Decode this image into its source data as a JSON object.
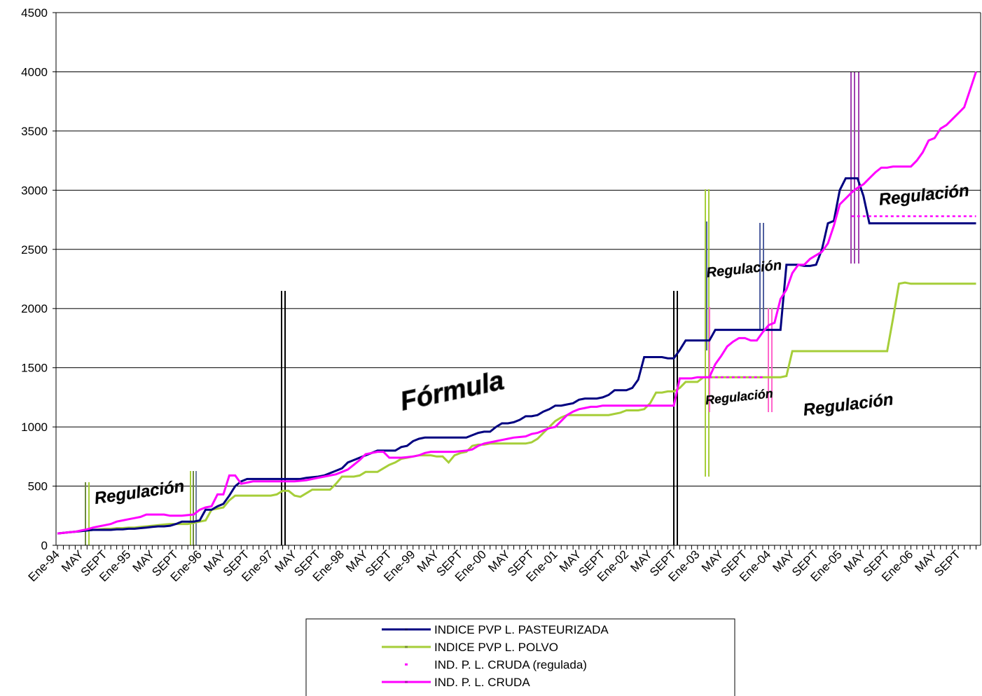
{
  "chart_data": {
    "type": "line",
    "categories": [
      "Ene-94",
      null,
      null,
      null,
      "MAY",
      null,
      null,
      null,
      "SEPT",
      null,
      null,
      null,
      "Ene-95",
      null,
      null,
      null,
      "MAY",
      null,
      null,
      null,
      "SEPT",
      null,
      null,
      null,
      "Ene-96",
      null,
      null,
      null,
      "MAY",
      null,
      null,
      null,
      "SEPT",
      null,
      null,
      null,
      "Ene-97",
      null,
      null,
      null,
      "MAY",
      null,
      null,
      null,
      "SEPT",
      null,
      null,
      null,
      "Ene-98",
      null,
      null,
      null,
      "MAY",
      null,
      null,
      null,
      "SEPT",
      null,
      null,
      null,
      "Ene-99",
      null,
      null,
      null,
      "MAY",
      null,
      null,
      null,
      "SEPT",
      null,
      null,
      null,
      "Ene-00",
      null,
      null,
      null,
      "MAY",
      null,
      null,
      null,
      "SEPT",
      null,
      null,
      null,
      "Ene-01",
      null,
      null,
      null,
      "MAY",
      null,
      null,
      null,
      "SEPT",
      null,
      null,
      null,
      "Ene-02",
      null,
      null,
      null,
      "MAY",
      null,
      null,
      null,
      "SEPT",
      null,
      null,
      null,
      "Ene-03",
      null,
      null,
      null,
      "MAY",
      null,
      null,
      null,
      "SEPT",
      null,
      null,
      null,
      "Ene-04",
      null,
      null,
      null,
      "MAY",
      null,
      null,
      null,
      "SEPT",
      null,
      null,
      null,
      "Ene-05",
      null,
      null,
      null,
      "MAY",
      null,
      null,
      null,
      "SEPT",
      null,
      null,
      null,
      "Ene-06",
      null,
      null,
      null,
      "MAY",
      null,
      null,
      null,
      "SEPT",
      null,
      null,
      null
    ],
    "series": [
      {
        "name": "INDICE PVP L. PASTEURIZADA",
        "color": "#000080",
        "style": "solid",
        "values": [
          100,
          105,
          110,
          115,
          120,
          125,
          130,
          130,
          130,
          130,
          135,
          135,
          140,
          140,
          145,
          150,
          155,
          160,
          160,
          165,
          180,
          200,
          200,
          200,
          210,
          300,
          300,
          330,
          350,
          420,
          500,
          540,
          560,
          560,
          560,
          560,
          560,
          560,
          560,
          560,
          560,
          560,
          570,
          575,
          580,
          590,
          610,
          630,
          650,
          700,
          720,
          740,
          760,
          780,
          800,
          800,
          800,
          800,
          830,
          840,
          880,
          900,
          910,
          910,
          910,
          910,
          910,
          910,
          910,
          910,
          930,
          950,
          960,
          960,
          1000,
          1030,
          1030,
          1040,
          1060,
          1090,
          1090,
          1100,
          1130,
          1150,
          1180,
          1180,
          1190,
          1200,
          1230,
          1240,
          1240,
          1240,
          1250,
          1270,
          1310,
          1310,
          1310,
          1330,
          1400,
          1590,
          1590,
          1590,
          1590,
          1580,
          1580,
          1650,
          1730,
          1730,
          1730,
          1730,
          1730,
          1820,
          1820,
          1820,
          1820,
          1820,
          1820,
          1820,
          1820,
          1820,
          1820,
          1820,
          1820,
          2370,
          2370,
          2370,
          2360,
          2360,
          2370,
          2500,
          2720,
          2740,
          3000,
          3100,
          3100,
          3100,
          2950,
          2720,
          2720,
          2720,
          2720,
          2720,
          2720,
          2720,
          2720,
          2720,
          2720,
          2720,
          2720,
          2720,
          2720,
          2720,
          2720,
          2720,
          2720,
          2720
        ]
      },
      {
        "name": "INDICE PVP L. POLVO",
        "color": "#a6ce39",
        "style": "solid",
        "values": [
          100,
          105,
          110,
          115,
          120,
          125,
          130,
          135,
          140,
          140,
          145,
          145,
          150,
          150,
          155,
          160,
          165,
          170,
          175,
          180,
          180,
          180,
          180,
          190,
          200,
          210,
          300,
          310,
          320,
          380,
          420,
          420,
          420,
          420,
          420,
          420,
          420,
          430,
          460,
          460,
          420,
          410,
          440,
          470,
          470,
          470,
          470,
          520,
          580,
          580,
          580,
          590,
          620,
          620,
          620,
          650,
          680,
          700,
          730,
          740,
          750,
          760,
          760,
          760,
          750,
          750,
          700,
          760,
          780,
          790,
          840,
          850,
          850,
          860,
          860,
          860,
          860,
          860,
          860,
          860,
          870,
          900,
          950,
          1000,
          1050,
          1080,
          1100,
          1100,
          1100,
          1100,
          1100,
          1100,
          1100,
          1100,
          1110,
          1120,
          1140,
          1140,
          1140,
          1150,
          1200,
          1290,
          1290,
          1300,
          1300,
          1330,
          1380,
          1380,
          1380,
          1420,
          1420,
          1420,
          1420,
          1420,
          1420,
          1420,
          1420,
          1420,
          1420,
          1420,
          1420,
          1420,
          1420,
          1430,
          1640,
          1640,
          1640,
          1640,
          1640,
          1640,
          1640,
          1640,
          1640,
          1640,
          1640,
          1640,
          1640,
          1640,
          1640,
          1640,
          1640,
          1920,
          2210,
          2220,
          2210,
          2210,
          2210,
          2210,
          2210,
          2210,
          2210,
          2210,
          2210,
          2210,
          2210,
          2210
        ]
      },
      {
        "name": "IND. P. L. CRUDA (regulada)",
        "color": "#ff00ff",
        "style": "dotted",
        "values": [
          null,
          null,
          null,
          null,
          null,
          null,
          null,
          null,
          null,
          null,
          null,
          null,
          null,
          null,
          null,
          null,
          null,
          null,
          null,
          null,
          null,
          null,
          null,
          null,
          null,
          null,
          null,
          null,
          null,
          null,
          null,
          null,
          null,
          null,
          null,
          null,
          null,
          null,
          null,
          null,
          null,
          null,
          null,
          null,
          null,
          null,
          null,
          null,
          null,
          null,
          null,
          null,
          null,
          null,
          null,
          null,
          null,
          null,
          null,
          null,
          null,
          null,
          null,
          null,
          null,
          null,
          null,
          null,
          null,
          null,
          null,
          null,
          null,
          null,
          null,
          null,
          null,
          null,
          null,
          null,
          null,
          null,
          null,
          null,
          null,
          null,
          null,
          null,
          null,
          null,
          null,
          null,
          null,
          null,
          null,
          null,
          null,
          null,
          null,
          null,
          null,
          null,
          null,
          null,
          null,
          null,
          null,
          null,
          null,
          null,
          1420,
          1420,
          1420,
          1420,
          1420,
          1420,
          1420,
          1420,
          1420,
          1420,
          null,
          null,
          null,
          null,
          null,
          null,
          null,
          null,
          null,
          null,
          null,
          null,
          null,
          null,
          2780,
          2780,
          2780,
          2780,
          2780,
          2780,
          2780,
          2780,
          2780,
          2780,
          2780,
          2780,
          2780,
          2780,
          2780,
          2780,
          2780,
          2780,
          2780,
          2780,
          2780,
          2780
        ]
      },
      {
        "name": "IND. P. L. CRUDA",
        "color": "#ff00ff",
        "style": "solid",
        "values": [
          100,
          105,
          110,
          115,
          125,
          135,
          150,
          160,
          170,
          180,
          200,
          210,
          220,
          230,
          240,
          260,
          260,
          260,
          260,
          250,
          250,
          250,
          255,
          260,
          300,
          320,
          330,
          430,
          430,
          590,
          590,
          520,
          530,
          540,
          540,
          540,
          540,
          540,
          540,
          540,
          540,
          545,
          550,
          560,
          570,
          580,
          590,
          600,
          620,
          640,
          680,
          720,
          770,
          780,
          790,
          790,
          740,
          740,
          740,
          745,
          750,
          760,
          780,
          790,
          790,
          790,
          790,
          790,
          795,
          800,
          810,
          840,
          860,
          870,
          880,
          890,
          900,
          910,
          915,
          920,
          940,
          950,
          970,
          990,
          1000,
          1050,
          1100,
          1130,
          1150,
          1160,
          1170,
          1170,
          1180,
          1180,
          1180,
          1180,
          1180,
          1180,
          1180,
          1180,
          1180,
          1180,
          1180,
          1180,
          1180,
          1410,
          1410,
          1410,
          1420,
          1420,
          1420,
          1530,
          1600,
          1680,
          1720,
          1750,
          1750,
          1730,
          1730,
          1800,
          1860,
          1880,
          2080,
          2160,
          2300,
          2370,
          2370,
          2420,
          2450,
          2480,
          2550,
          2700,
          2880,
          2930,
          2980,
          3020,
          3050,
          3100,
          3150,
          3190,
          3190,
          3200,
          3200,
          3200,
          3200,
          3250,
          3320,
          3420,
          3440,
          3520,
          3550,
          3600,
          3650,
          3700,
          3850,
          4000
        ]
      }
    ],
    "ylim": [
      0,
      4500
    ],
    "yticks": [
      0,
      500,
      1000,
      1500,
      2000,
      2500,
      3000,
      3500,
      4000,
      4500
    ],
    "grid": true,
    "legend": "bottom",
    "annotations": [
      "Regulación",
      "Fórmula",
      "Regulación",
      "Regulación",
      "Regulación",
      "Regulación"
    ]
  }
}
